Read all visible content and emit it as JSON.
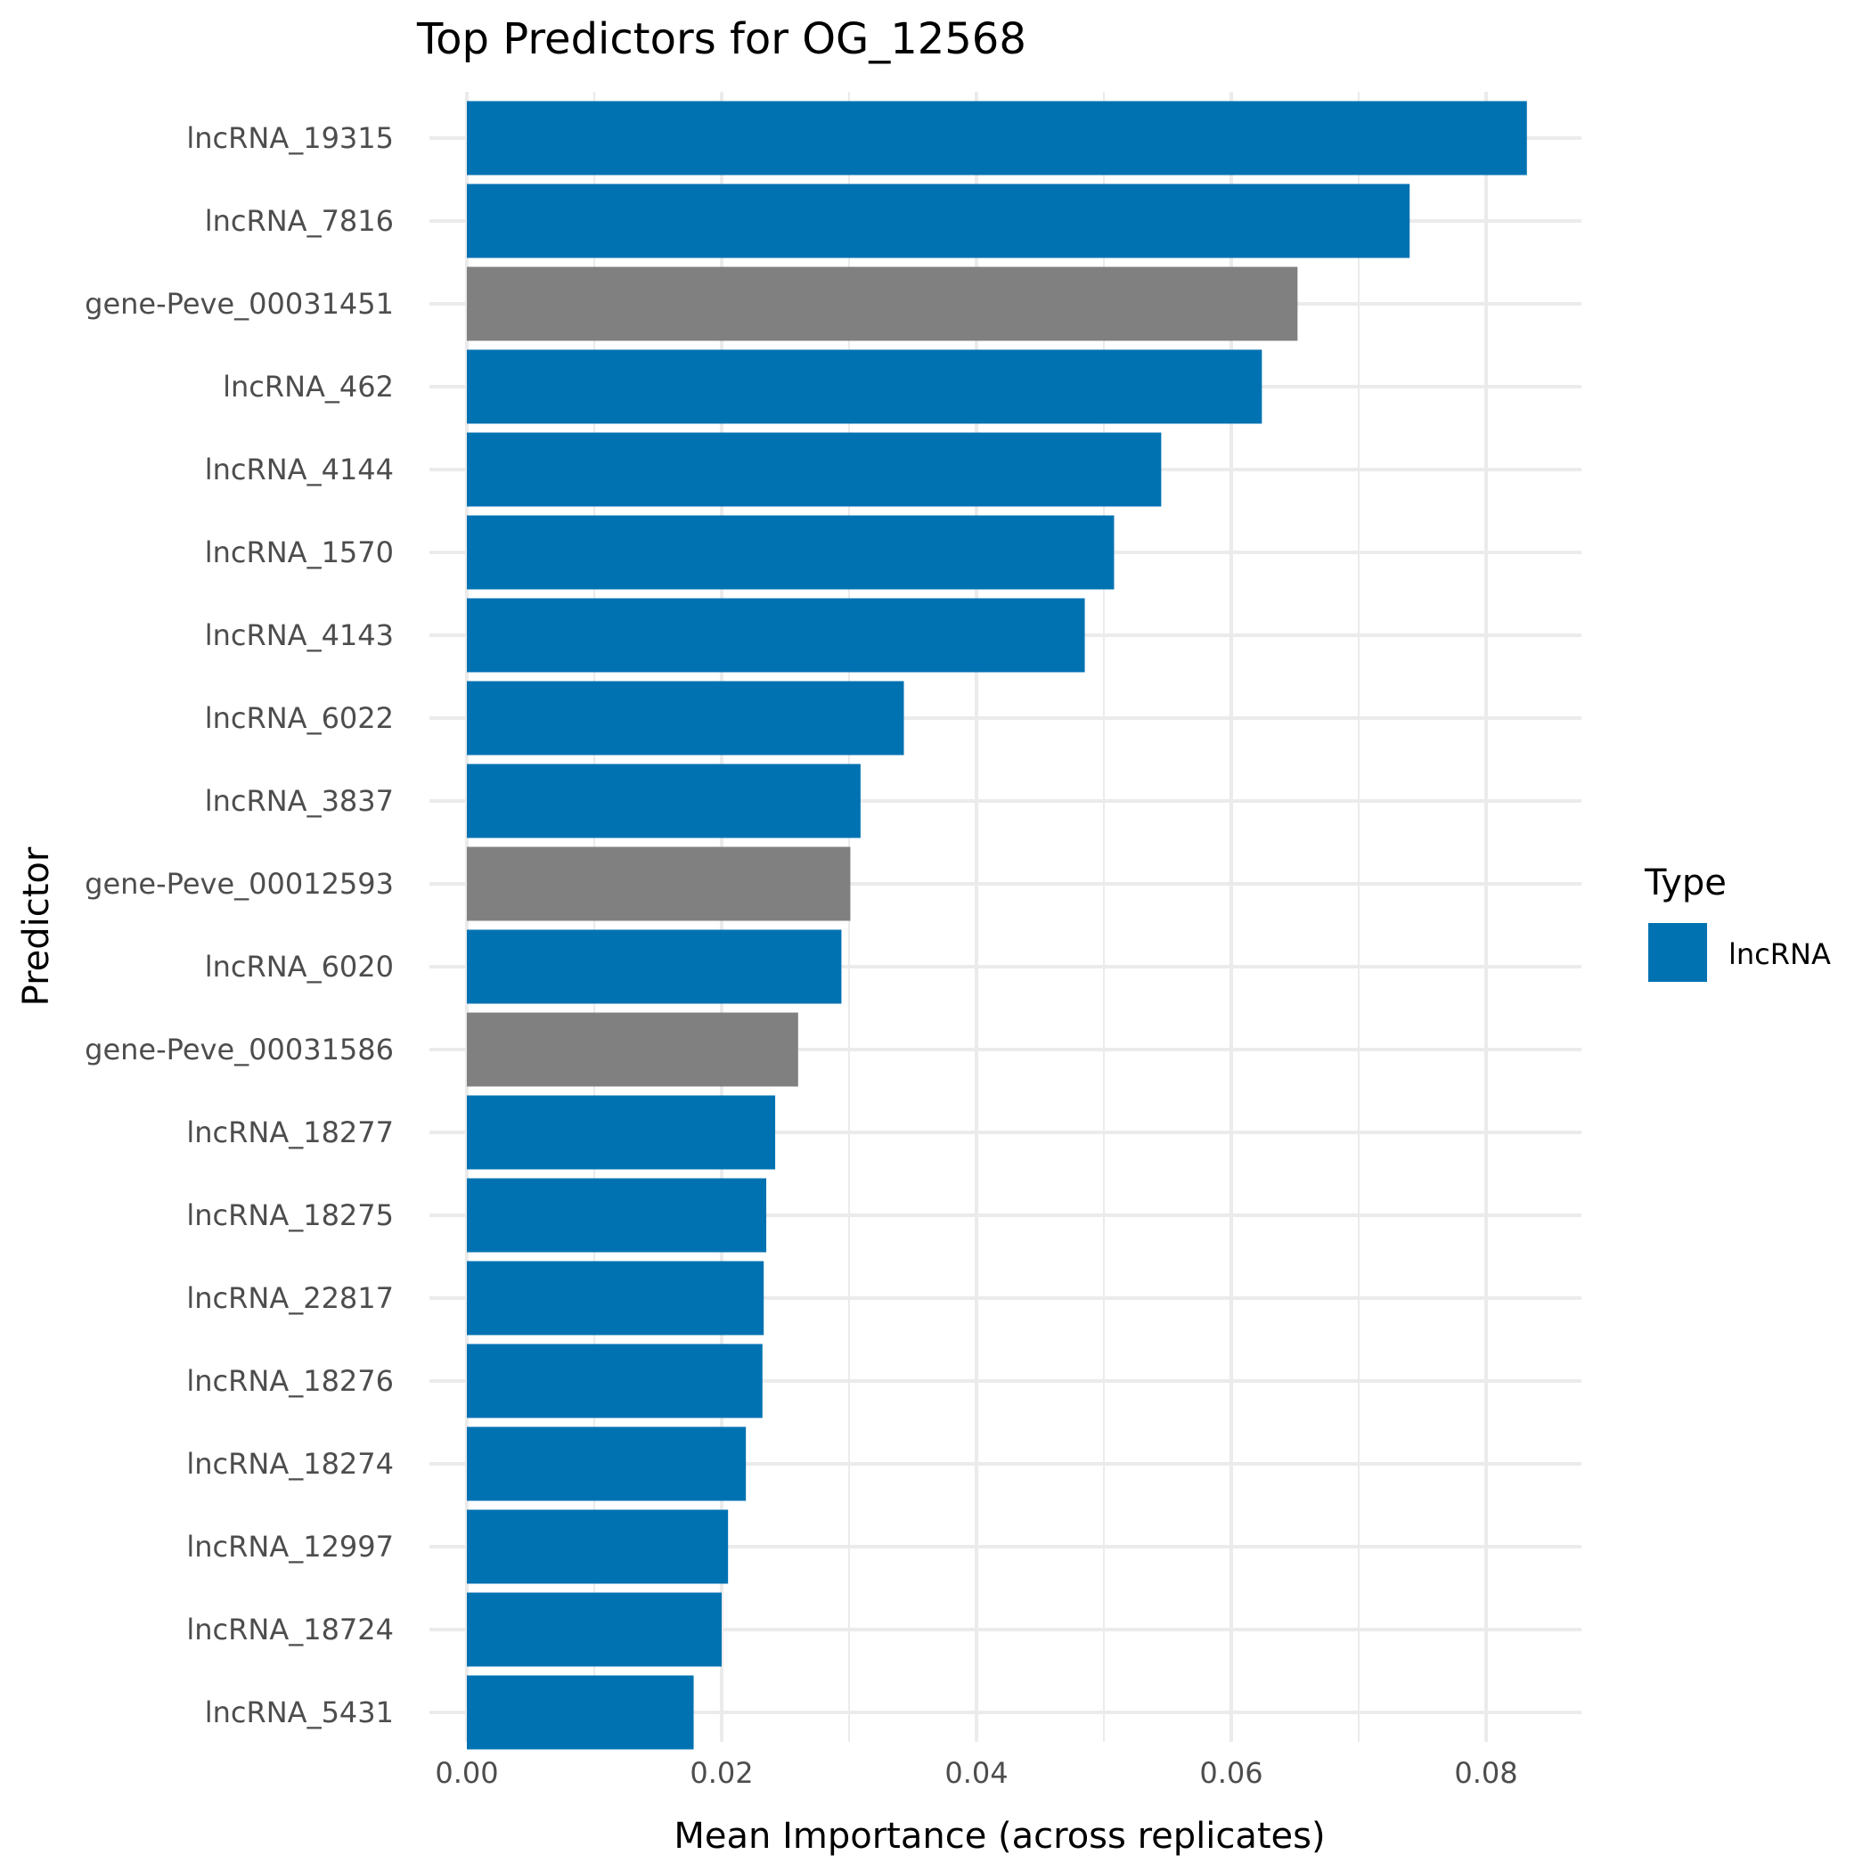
{
  "chart_data": {
    "type": "bar",
    "orientation": "horizontal",
    "title": "Top Predictors for OG_12568",
    "xlabel": "Mean Importance (across replicates)",
    "ylabel": "Predictor",
    "xlim": [
      0,
      0.0872
    ],
    "x_ticks": [
      0.0,
      0.02,
      0.04,
      0.06,
      0.08
    ],
    "x_tick_labels": [
      "0.00",
      "0.02",
      "0.04",
      "0.06",
      "0.08"
    ],
    "grid": true,
    "categories": [
      "lncRNA_19315",
      "lncRNA_7816",
      "gene-Peve_00031451",
      "lncRNA_462",
      "lncRNA_4144",
      "lncRNA_1570",
      "lncRNA_4143",
      "lncRNA_6022",
      "lncRNA_3837",
      "gene-Peve_00012593",
      "lncRNA_6020",
      "gene-Peve_00031586",
      "lncRNA_18277",
      "lncRNA_18275",
      "lncRNA_22817",
      "lncRNA_18276",
      "lncRNA_18274",
      "lncRNA_12997",
      "lncRNA_18724",
      "lncRNA_5431"
    ],
    "values": [
      0.0832,
      0.074,
      0.0652,
      0.0624,
      0.0545,
      0.0508,
      0.0485,
      0.0343,
      0.0309,
      0.0301,
      0.0294,
      0.026,
      0.0242,
      0.0235,
      0.0233,
      0.0232,
      0.0219,
      0.0205,
      0.02,
      0.0178
    ],
    "types": [
      "lncRNA",
      "lncRNA",
      "gene",
      "lncRNA",
      "lncRNA",
      "lncRNA",
      "lncRNA",
      "lncRNA",
      "lncRNA",
      "gene",
      "lncRNA",
      "gene",
      "lncRNA",
      "lncRNA",
      "lncRNA",
      "lncRNA",
      "lncRNA",
      "lncRNA",
      "lncRNA",
      "lncRNA"
    ],
    "colors": {
      "lncRNA": "#0072B2",
      "gene": "#808080"
    },
    "legend": {
      "title": "Type",
      "position": "right",
      "entries": [
        {
          "label": "lncRNA",
          "color": "#0072B2"
        }
      ]
    }
  }
}
